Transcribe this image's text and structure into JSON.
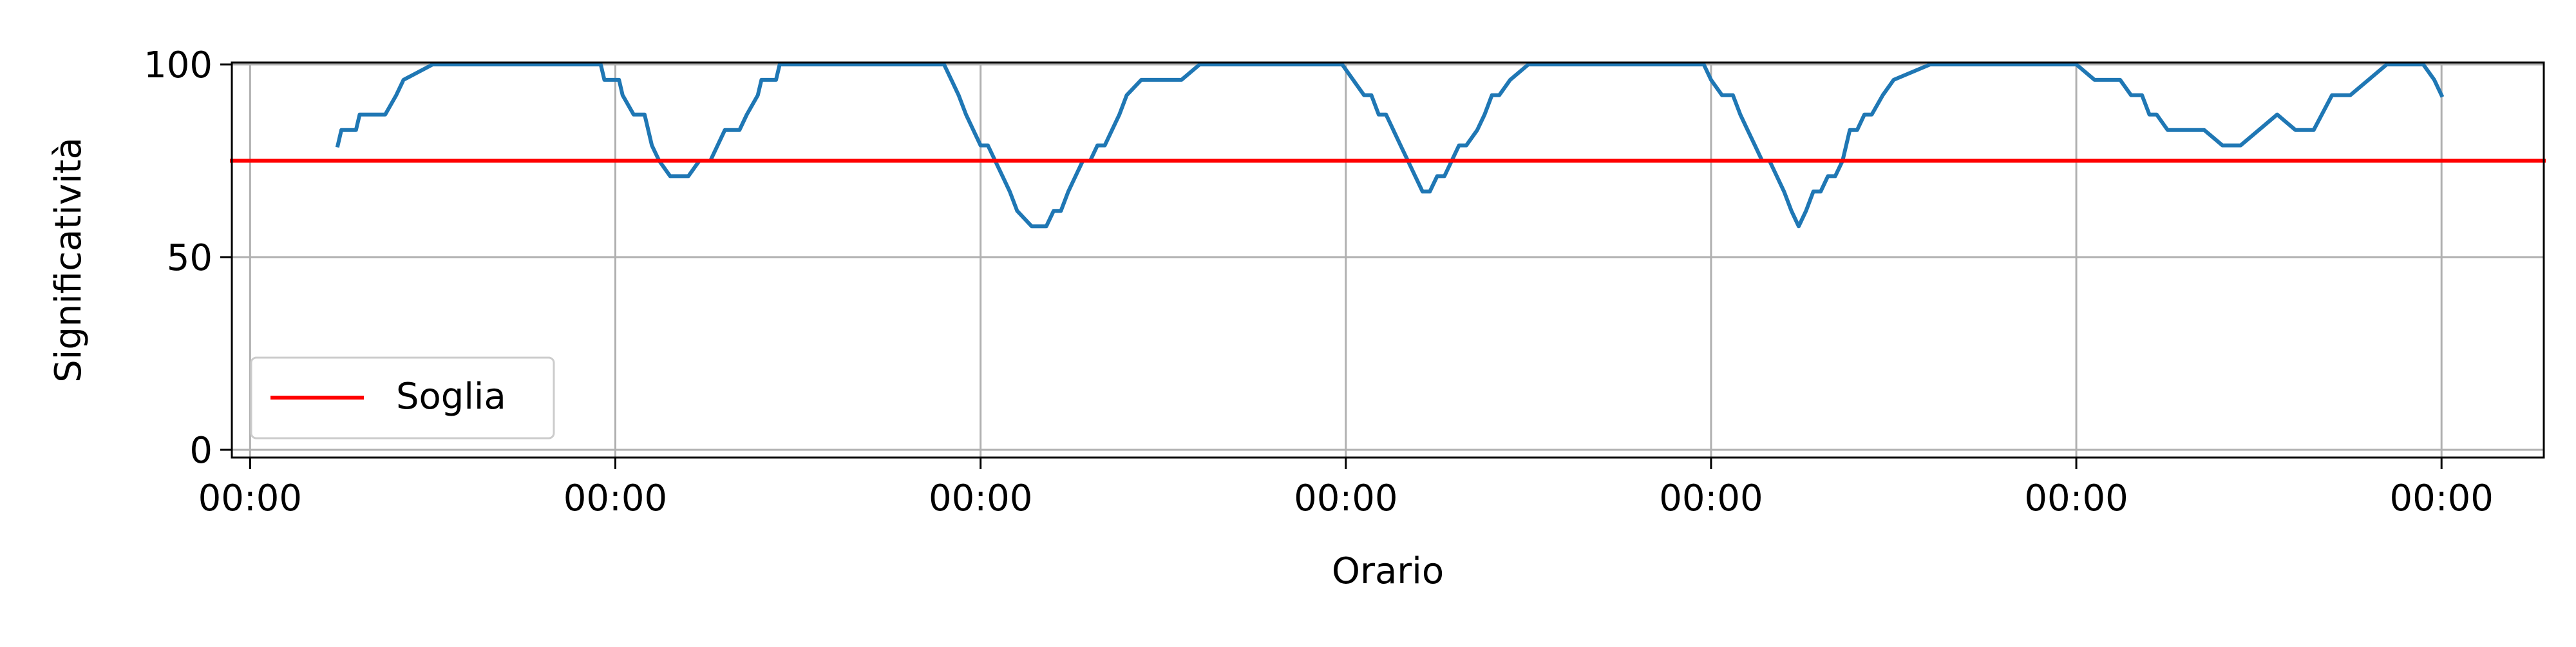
{
  "chart_data": {
    "type": "line",
    "title": "",
    "xlabel": "Orario",
    "ylabel": "Significatività",
    "ylim": [
      0,
      100
    ],
    "yticks": [
      0,
      50,
      100
    ],
    "xlim": [
      -0.05,
      6.28
    ],
    "xticks": [
      0,
      1,
      2,
      3,
      4,
      5,
      6
    ],
    "xtick_labels": [
      "00:00",
      "00:00",
      "00:00",
      "00:00",
      "00:00",
      "00:00",
      "00:00"
    ],
    "grid": true,
    "legend_position": "lower-left",
    "series": [
      {
        "color": "#1f77b4",
        "x": [
          0.24,
          0.25,
          0.29,
          0.3,
          0.37,
          0.4,
          0.42,
          0.5,
          0.6,
          0.7,
          0.8,
          0.9,
          0.96,
          0.97,
          1.01,
          1.02,
          1.05,
          1.08,
          1.1,
          1.12,
          1.15,
          1.17,
          1.2,
          1.23,
          1.26,
          1.28,
          1.3,
          1.34,
          1.36,
          1.39,
          1.4,
          1.44,
          1.45,
          1.5,
          1.6,
          1.7,
          1.8,
          1.87,
          1.9,
          1.92,
          1.94,
          1.96,
          1.98,
          2.0,
          2.02,
          2.04,
          2.06,
          2.08,
          2.1,
          2.14,
          2.16,
          2.18,
          2.2,
          2.22,
          2.24,
          2.26,
          2.28,
          2.3,
          2.32,
          2.34,
          2.36,
          2.38,
          2.4,
          2.44,
          2.46,
          2.5,
          2.55,
          2.6,
          2.7,
          2.8,
          2.9,
          2.97,
          2.99,
          3.02,
          3.05,
          3.07,
          3.09,
          3.11,
          3.13,
          3.15,
          3.17,
          3.19,
          3.21,
          3.23,
          3.25,
          3.27,
          3.29,
          3.31,
          3.33,
          3.36,
          3.38,
          3.4,
          3.42,
          3.45,
          3.5,
          3.6,
          3.7,
          3.8,
          3.9,
          3.98,
          4.0,
          4.03,
          4.06,
          4.08,
          4.1,
          4.12,
          4.14,
          4.16,
          4.18,
          4.2,
          4.22,
          4.24,
          4.26,
          4.28,
          4.3,
          4.32,
          4.34,
          4.36,
          4.38,
          4.4,
          4.42,
          4.44,
          4.47,
          4.5,
          4.6,
          4.7,
          4.8,
          4.9,
          4.97,
          5.0,
          5.05,
          5.1,
          5.12,
          5.15,
          5.18,
          5.2,
          5.22,
          5.25,
          5.3,
          5.35,
          5.4,
          5.45,
          5.5,
          5.55,
          5.6,
          5.65,
          5.7,
          5.75,
          5.8,
          5.85,
          5.9,
          5.95,
          5.98,
          6.0
        ],
        "y": [
          79,
          83,
          83,
          87,
          87,
          92,
          96,
          100,
          100,
          100,
          100,
          100,
          100,
          96,
          96,
          92,
          87,
          87,
          79,
          75,
          71,
          71,
          71,
          75,
          75,
          79,
          83,
          83,
          87,
          92,
          96,
          96,
          100,
          100,
          100,
          100,
          100,
          100,
          100,
          96,
          92,
          87,
          83,
          79,
          79,
          75,
          71,
          67,
          62,
          58,
          58,
          58,
          62,
          62,
          67,
          71,
          75,
          75,
          79,
          79,
          83,
          87,
          92,
          96,
          96,
          96,
          96,
          100,
          100,
          100,
          100,
          100,
          100,
          96,
          92,
          92,
          87,
          87,
          83,
          79,
          75,
          71,
          67,
          67,
          71,
          71,
          75,
          79,
          79,
          83,
          87,
          92,
          92,
          96,
          100,
          100,
          100,
          100,
          100,
          100,
          96,
          92,
          92,
          87,
          83,
          79,
          75,
          75,
          71,
          67,
          62,
          58,
          62,
          67,
          67,
          71,
          71,
          75,
          83,
          83,
          87,
          87,
          92,
          96,
          100,
          100,
          100,
          100,
          100,
          100,
          96,
          96,
          96,
          92,
          92,
          87,
          87,
          83,
          83,
          83,
          79,
          79,
          83,
          87,
          83,
          83,
          92,
          92,
          96,
          100,
          100,
          100,
          96,
          92
        ]
      },
      {
        "name": "Soglia",
        "color": "#ff0000",
        "x": [
          -0.05,
          6.28
        ],
        "y": [
          75,
          75
        ]
      }
    ]
  }
}
